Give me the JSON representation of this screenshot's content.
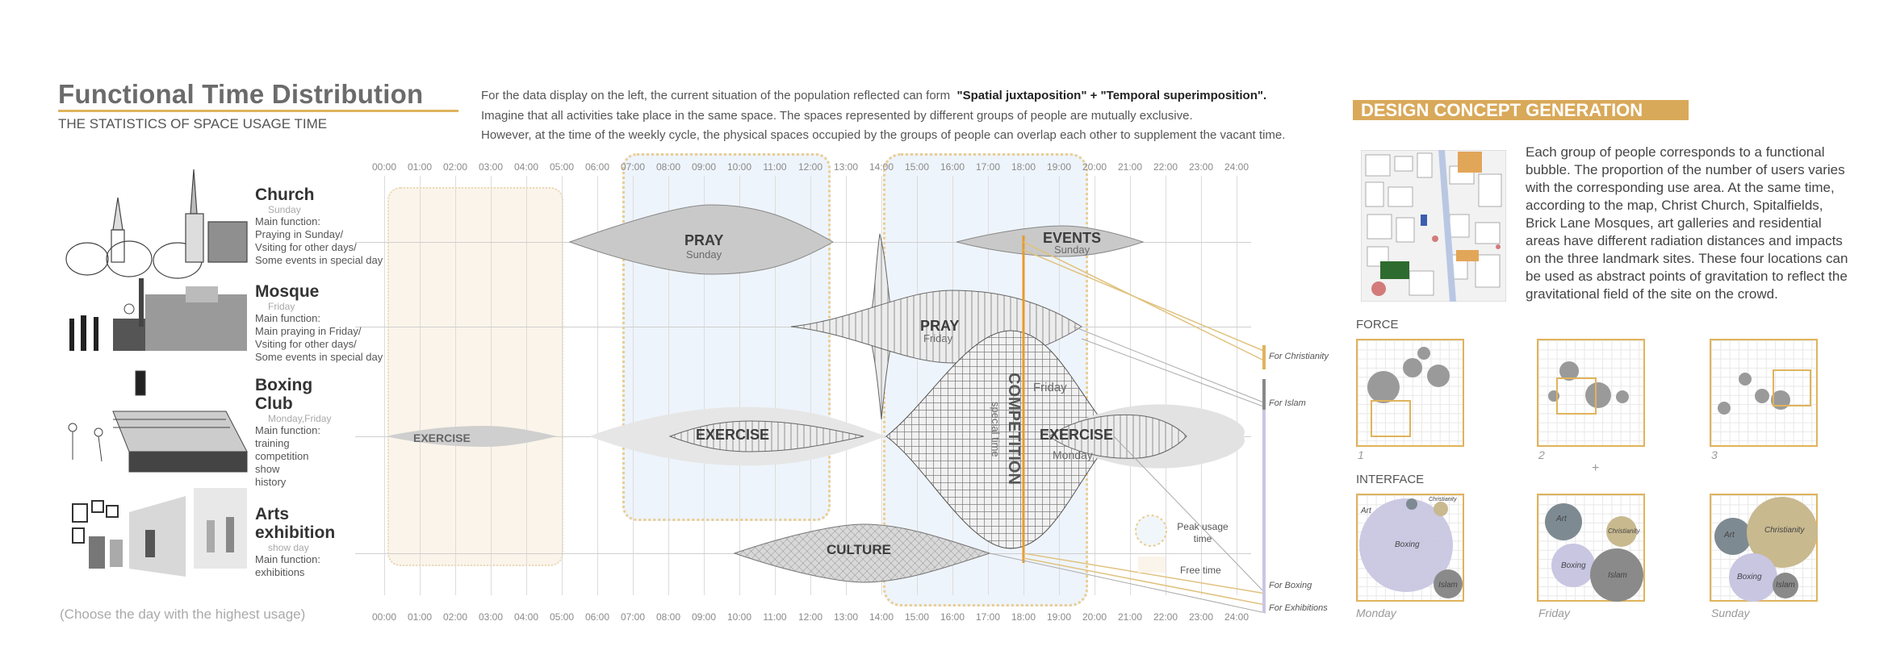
{
  "header": {
    "title": "Functional Time Distribution",
    "subtitle": "THE STATISTICS OF SPACE USAGE TIME",
    "intro_line1_prefix": "For the data display on the left, the current situation of the population reflected can form",
    "intro_line1_bold": "\"Spatial juxtaposition\" + \"Temporal superimposition\".",
    "intro_line2": "Imagine that all activities take place in the same space. The spaces represented by different groups of people are mutually exclusive.",
    "intro_line3": "However, at the time of the weekly cycle, the physical spaces occupied by the groups of people can overlap each other to supplement the vacant time."
  },
  "timeline": {
    "hours": [
      "00:00",
      "01:00",
      "02:00",
      "03:00",
      "04:00",
      "05:00",
      "06:00",
      "07:00",
      "08:00",
      "09:00",
      "10:00",
      "11:00",
      "12:00",
      "13:00",
      "14:00",
      "15:00",
      "16:00",
      "17:00",
      "18:00",
      "19:00",
      "20:00",
      "21:00",
      "22:00",
      "23:00",
      "24:00"
    ],
    "footnote": "(Choose the day with the highest usage)"
  },
  "categories": [
    {
      "title": "Church",
      "day": "Sunday",
      "desc": [
        "Main function:",
        "Praying in Sunday/",
        "Vsiting for other days/",
        "Some events in special day"
      ]
    },
    {
      "title": "Mosque",
      "day": "Friday",
      "desc": [
        "Main function:",
        "Main praying in Friday/",
        "Vsiting for other days/",
        "Some events in special day"
      ]
    },
    {
      "title_line1": "Boxing",
      "title_line2": "Club",
      "day": "Monday,Friday",
      "desc": [
        "Main function:",
        "training",
        "competition",
        "show",
        "history"
      ]
    },
    {
      "title_line1": "Arts",
      "title_line2": "exhibition",
      "day": "show day",
      "desc": [
        "Main function:",
        "exhibitions"
      ]
    }
  ],
  "activities": {
    "pray_sunday": "PRAY",
    "pray_sunday_sub": "Sunday",
    "events": "EVENTS",
    "events_sub": "Sunday",
    "pray_friday": "PRAY",
    "pray_friday_sub": "Friday",
    "exercise_left": "EXERCISE",
    "exercise_mid": "EXERCISE",
    "exercise_right": "EXERCISE",
    "exercise_right_sub": "Monday",
    "competition": "COMPETITION",
    "competition_sub": "special time",
    "friday": "Friday",
    "culture": "CULTURE"
  },
  "legend": {
    "peak": "Peak usage\ntime",
    "free": "Free time"
  },
  "connectors": {
    "christianity": "For Christianity",
    "islam": "For Islam",
    "boxing": "For Boxing",
    "exhibitions": "For Exhibitions"
  },
  "concept": {
    "heading": "DESIGN CONCEPT GENERATION",
    "text": "Each group of people corresponds to a functional bubble. The proportion of the number of users varies with the corresponding use area. At the same time, according to the map, Christ Church, Spitalfields, Brick Lane Mosques, art galleries and residential areas have different radiation distances and impacts on the three landmark sites. These four locations can be used as abstract points of gravitation to reflect the gravitational field of the site on the crowd.",
    "force_label": "FORCE",
    "interface_label": "INTERFACE",
    "force_captions": [
      "1",
      "2",
      "3"
    ],
    "plus": "+",
    "interface_captions": [
      "Monday",
      "Friday",
      "Sunday"
    ],
    "bubble_labels": {
      "art": "Art",
      "christianity": "Christianity",
      "boxing": "Boxing",
      "islam": "Islam"
    }
  },
  "colors": {
    "accent": "#e0b35c",
    "orange_line": "#e89a2e",
    "lavender": "#c9c6e2",
    "taupe": "#c8b98f",
    "slate": "#7e8a92",
    "grey": "#8a8a8a"
  }
}
